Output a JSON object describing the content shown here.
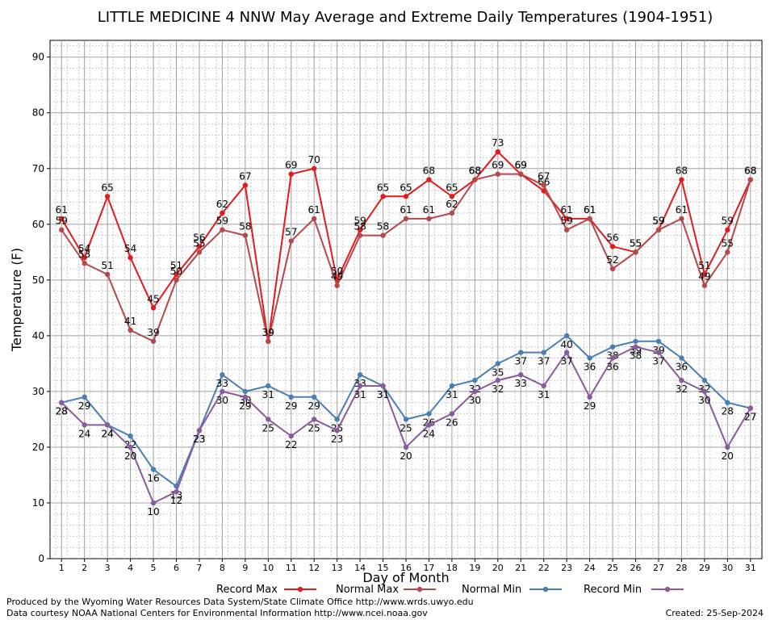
{
  "chart_data": {
    "type": "line",
    "title": "LITTLE MEDICINE 4 NNW May Average and Extreme Daily Temperatures (1904-1951)",
    "xlabel": "Day of Month",
    "ylabel": "Temperature (F)",
    "xlim": [
      0.5,
      31.5
    ],
    "ylim": [
      0,
      93
    ],
    "yticks": [
      0,
      10,
      20,
      30,
      40,
      50,
      60,
      70,
      80,
      90
    ],
    "grid": true,
    "legend_position": "bottom",
    "x": [
      1,
      2,
      3,
      4,
      5,
      6,
      7,
      8,
      9,
      10,
      11,
      12,
      13,
      14,
      15,
      16,
      17,
      18,
      19,
      20,
      21,
      22,
      23,
      24,
      25,
      26,
      27,
      28,
      29,
      30,
      31
    ],
    "series": [
      {
        "name": "Record Max",
        "color": "#e41a1c",
        "label_pos": "above",
        "values": [
          61,
          54,
          65,
          54,
          45,
          51,
          56,
          62,
          67,
          39,
          69,
          70,
          50,
          59,
          65,
          65,
          68,
          65,
          68,
          73,
          69,
          66,
          61,
          61,
          56,
          55,
          59,
          68,
          51,
          59,
          68
        ]
      },
      {
        "name": "Normal Max",
        "color": "#b5484a",
        "label_pos": "above",
        "values": [
          59,
          53,
          51,
          41,
          39,
          50,
          55,
          59,
          58,
          39,
          57,
          61,
          49,
          58,
          58,
          61,
          61,
          62,
          68,
          69,
          69,
          67,
          59,
          61,
          52,
          55,
          59,
          61,
          49,
          55,
          68
        ]
      },
      {
        "name": "Normal Min",
        "color": "#4a7fb5",
        "label_pos": "below",
        "values": [
          28,
          29,
          24,
          22,
          16,
          13,
          23,
          33,
          30,
          31,
          29,
          29,
          25,
          33,
          31,
          25,
          26,
          31,
          32,
          35,
          37,
          37,
          40,
          36,
          38,
          39,
          39,
          36,
          32,
          28,
          27
        ]
      },
      {
        "name": "Record Min",
        "color": "#8a5a9e",
        "label_pos": "below",
        "values": [
          28,
          24,
          24,
          20,
          10,
          12,
          23,
          30,
          29,
          25,
          22,
          25,
          23,
          31,
          31,
          20,
          24,
          26,
          30,
          32,
          33,
          31,
          37,
          29,
          36,
          38,
          37,
          32,
          30,
          20,
          27
        ]
      }
    ]
  },
  "footer": {
    "produced_by": "Produced by the Wyoming Water Resources Data System/State Climate Office http://www.wrds.uwyo.edu",
    "courtesy": "Data courtesy NOAA National Centers for Environmental Information http://www.ncei.noaa.gov",
    "created": "Created:  25-Sep-2024"
  }
}
